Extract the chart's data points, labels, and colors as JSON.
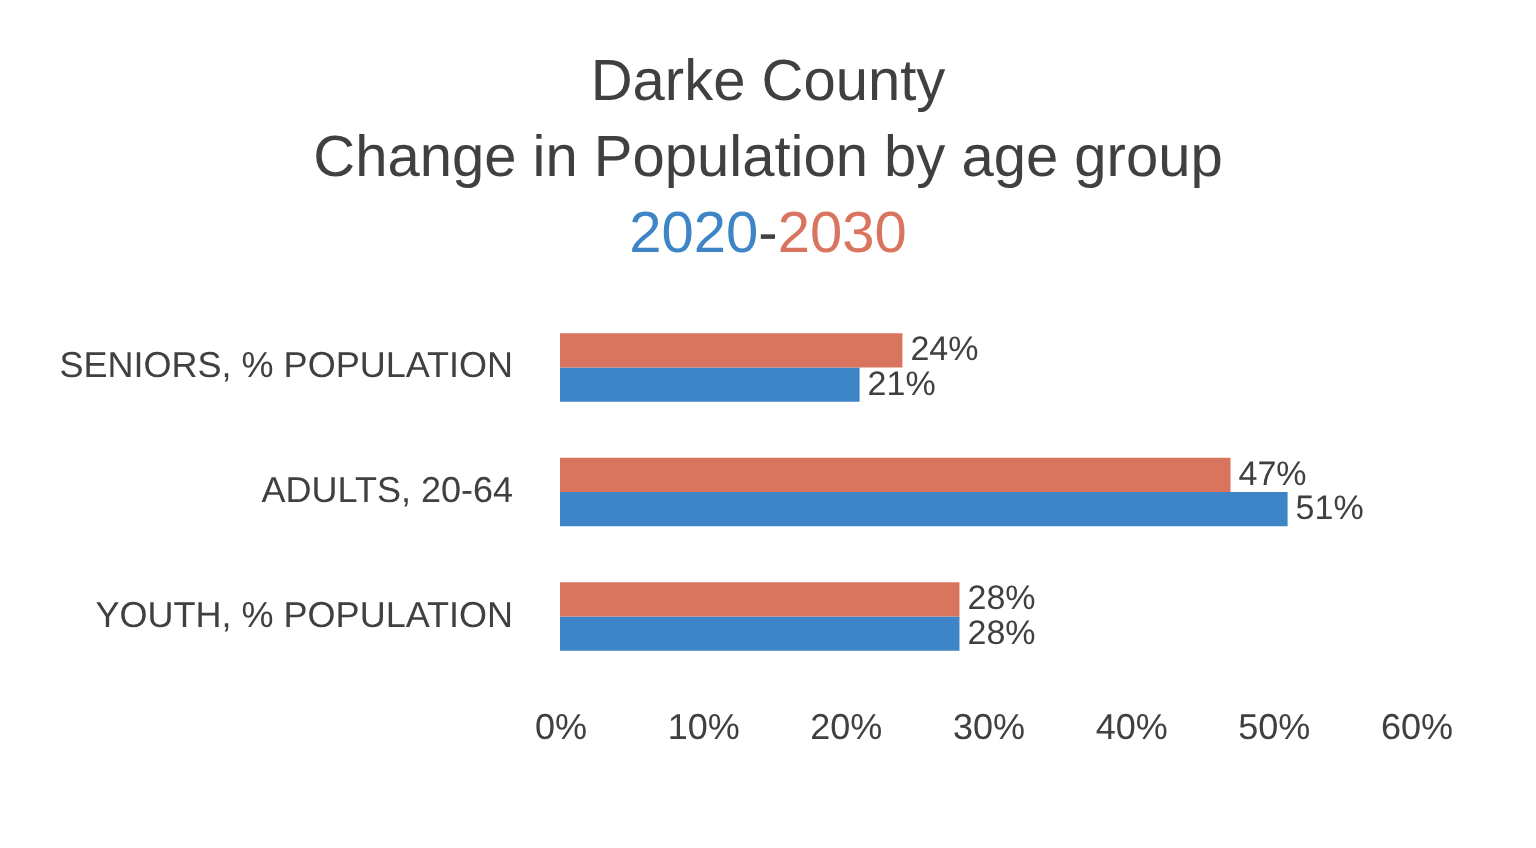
{
  "chart_data": {
    "type": "bar",
    "orientation": "horizontal",
    "title": "Darke County\nChange in Population by age group",
    "legend": "top",
    "categories": [
      "SENIORS, % POPULATION",
      "ADULTS, 20-64",
      "YOUTH, % POPULATION"
    ],
    "series": [
      {
        "name": "2020",
        "color": "#3d85c6",
        "values": [
          21,
          51,
          28
        ],
        "value_labels": [
          "21%",
          "51%",
          "28%"
        ]
      },
      {
        "name": "2030",
        "color": "#d9745f",
        "values": [
          24,
          47,
          28
        ],
        "value_labels": [
          "24%",
          "47%",
          "28%"
        ]
      }
    ],
    "xlim": [
      0,
      60
    ],
    "xticks": [
      {
        "value": 0,
        "label": "0%"
      },
      {
        "value": 10,
        "label": "10%"
      },
      {
        "value": 20,
        "label": "20%"
      },
      {
        "value": 30,
        "label": "30%"
      },
      {
        "value": 40,
        "label": "40%"
      },
      {
        "value": 50,
        "label": "50%"
      },
      {
        "value": 60,
        "label": "60%"
      }
    ],
    "grid": false,
    "annotations": [
      "-"
    ]
  }
}
